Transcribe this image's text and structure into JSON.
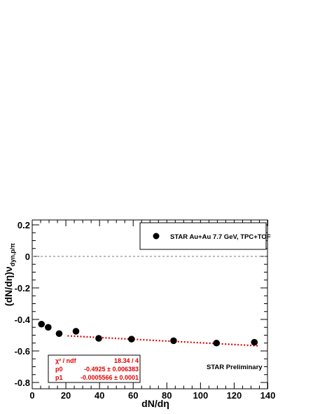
{
  "chart_data": {
    "type": "scatter",
    "xlabel": "dN/dη",
    "ylabel_main": "(dN/dη)ν",
    "ylabel_sub": "dyn,p/π",
    "xlim": [
      0,
      140
    ],
    "ylim": [
      -0.82,
      0.22
    ],
    "x_ticks": [
      0,
      20,
      40,
      60,
      80,
      100,
      120,
      140
    ],
    "x_tick_labels": [
      "0",
      "20",
      "40",
      "60",
      "80",
      "100",
      "120",
      "140"
    ],
    "y_ticks": [
      0.2,
      0,
      -0.2,
      -0.4,
      -0.6,
      -0.8
    ],
    "y_tick_labels": [
      "0.2",
      "0",
      "-0.2",
      "-0.4",
      "-0.6",
      "-0.8"
    ],
    "grid": false,
    "zero_line": true,
    "series": [
      {
        "name": "STAR Au+Au 7.7 GeV, TPC+TOF",
        "color": "#000000",
        "x": [
          5.5,
          9.5,
          16,
          26,
          39.5,
          59,
          84,
          109.5,
          132
        ],
        "y": [
          -0.43,
          -0.45,
          -0.49,
          -0.475,
          -0.52,
          -0.525,
          -0.535,
          -0.55,
          -0.545
        ]
      }
    ],
    "fit": {
      "color": "#e00000",
      "p0": -0.4925,
      "p1": -0.0005566,
      "x_range": [
        21,
        134
      ]
    },
    "legend": {
      "label": "STAR Au+Au 7.7 GeV, TPC+TOF",
      "placement": "top-right"
    },
    "stats_box": {
      "rows": [
        {
          "name": "χ² / ndf",
          "value": "18.34 / 4"
        },
        {
          "name": "p0",
          "value": "-0.4925 ± 0.006383"
        },
        {
          "name": "p1",
          "value": "-0.0005566 ± 0.0001"
        }
      ]
    },
    "annotation": "STAR Preliminary"
  }
}
